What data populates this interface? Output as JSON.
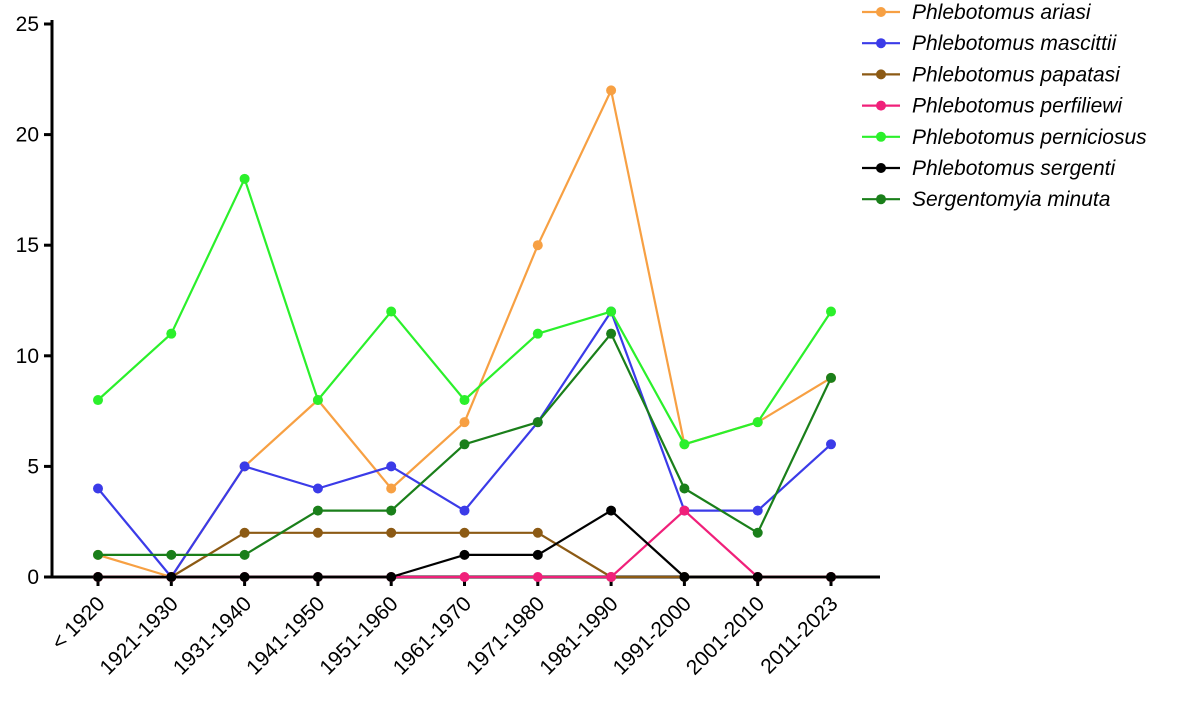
{
  "chart_data": {
    "type": "line",
    "title": "",
    "xlabel": "",
    "ylabel": "",
    "categories": [
      "< 1920",
      "1921-1930",
      "1931-1940",
      "1941-1950",
      "1951-1960",
      "1961-1970",
      "1971-1980",
      "1981-1990",
      "1991-2000",
      "2001-2010",
      "2011-2023"
    ],
    "ylim": [
      0,
      25
    ],
    "yticks": [
      0,
      5,
      10,
      15,
      20,
      25
    ],
    "grid": false,
    "legend_position": "top-right",
    "series": [
      {
        "name": "Phlebotomus ariasi",
        "color": "#F7A043",
        "values": [
          1,
          0,
          5,
          8,
          4,
          7,
          15,
          22,
          6,
          7,
          9
        ]
      },
      {
        "name": "Phlebotomus mascittii",
        "color": "#3B3BE8",
        "values": [
          4,
          0,
          5,
          4,
          5,
          3,
          7,
          12,
          3,
          3,
          6
        ]
      },
      {
        "name": "Phlebotomus papatasi",
        "color": "#8C5A14",
        "values": [
          0,
          0,
          2,
          2,
          2,
          2,
          2,
          0,
          0,
          0,
          0
        ]
      },
      {
        "name": "Phlebotomus perfiliewi",
        "color": "#F0207A",
        "values": [
          0,
          0,
          0,
          0,
          0,
          0,
          0,
          0,
          3,
          0,
          0
        ]
      },
      {
        "name": "Phlebotomus perniciosus",
        "color": "#2BF02B",
        "values": [
          8,
          11,
          18,
          8,
          12,
          8,
          11,
          12,
          6,
          7,
          12
        ]
      },
      {
        "name": "Phlebotomus sergenti",
        "color": "#000000",
        "values": [
          0,
          0,
          0,
          0,
          0,
          1,
          1,
          3,
          0,
          0,
          0
        ]
      },
      {
        "name": "Sergentomyia minuta",
        "color": "#1A7F1A",
        "values": [
          1,
          1,
          1,
          3,
          3,
          6,
          7,
          11,
          4,
          2,
          9
        ]
      }
    ]
  }
}
